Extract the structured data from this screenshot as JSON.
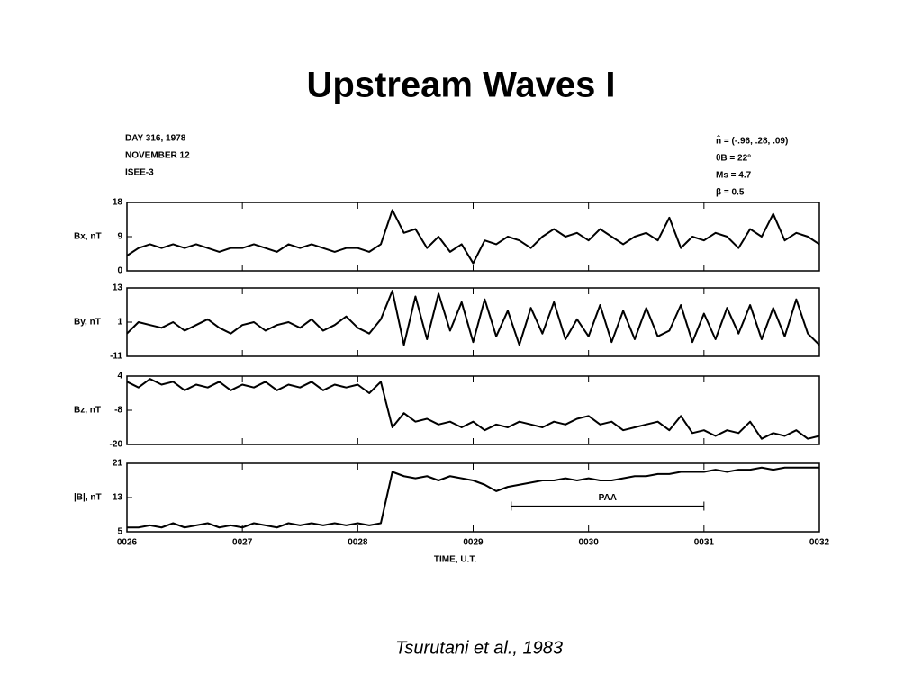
{
  "title": "Upstream Waves I",
  "caption": "Tsurutani et al., 1983",
  "header_left": [
    "DAY 316, 1978",
    "NOVEMBER 12",
    "ISEE-3"
  ],
  "header_right": [
    "n̂ = (-.96, .28, .09)",
    "θB = 22°",
    "Ms = 4.7",
    "β = 0.5"
  ],
  "chart_data": [
    {
      "type": "line",
      "ylabel": "Bx, nT",
      "ylim": [
        0,
        18
      ],
      "yticks": [
        0,
        9,
        18
      ],
      "xlim": [
        26,
        32
      ],
      "color": "#000000",
      "x": [
        26,
        26.1,
        26.2,
        26.3,
        26.4,
        26.5,
        26.6,
        26.7,
        26.8,
        26.9,
        27,
        27.1,
        27.2,
        27.3,
        27.4,
        27.5,
        27.6,
        27.7,
        27.8,
        27.9,
        28,
        28.1,
        28.2,
        28.3,
        28.4,
        28.5,
        28.6,
        28.7,
        28.8,
        28.9,
        29,
        29.1,
        29.2,
        29.3,
        29.4,
        29.5,
        29.6,
        29.7,
        29.8,
        29.9,
        30,
        30.1,
        30.2,
        30.3,
        30.4,
        30.5,
        30.6,
        30.7,
        30.8,
        30.9,
        31,
        31.1,
        31.2,
        31.3,
        31.4,
        31.5,
        31.6,
        31.7,
        31.8,
        31.9,
        32
      ],
      "values": [
        4,
        6,
        7,
        6,
        7,
        6,
        7,
        6,
        5,
        6,
        6,
        7,
        6,
        5,
        7,
        6,
        7,
        6,
        5,
        6,
        6,
        5,
        7,
        16,
        10,
        11,
        6,
        9,
        5,
        7,
        2,
        8,
        7,
        9,
        8,
        6,
        9,
        11,
        9,
        10,
        8,
        11,
        9,
        7,
        9,
        10,
        8,
        14,
        6,
        9,
        8,
        10,
        9,
        6,
        11,
        9,
        15,
        8,
        10,
        9,
        7
      ]
    },
    {
      "type": "line",
      "ylabel": "By, nT",
      "ylim": [
        -11,
        13
      ],
      "yticks": [
        -11,
        1,
        13
      ],
      "xlim": [
        26,
        32
      ],
      "color": "#000000",
      "x": [
        26,
        26.1,
        26.2,
        26.3,
        26.4,
        26.5,
        26.6,
        26.7,
        26.8,
        26.9,
        27,
        27.1,
        27.2,
        27.3,
        27.4,
        27.5,
        27.6,
        27.7,
        27.8,
        27.9,
        28,
        28.1,
        28.2,
        28.3,
        28.4,
        28.5,
        28.6,
        28.7,
        28.8,
        28.9,
        29,
        29.1,
        29.2,
        29.3,
        29.4,
        29.5,
        29.6,
        29.7,
        29.8,
        29.9,
        30,
        30.1,
        30.2,
        30.3,
        30.4,
        30.5,
        30.6,
        30.7,
        30.8,
        30.9,
        31,
        31.1,
        31.2,
        31.3,
        31.4,
        31.5,
        31.6,
        31.7,
        31.8,
        31.9,
        32
      ],
      "values": [
        -3,
        1,
        0,
        -1,
        1,
        -2,
        0,
        2,
        -1,
        -3,
        0,
        1,
        -2,
        0,
        1,
        -1,
        2,
        -2,
        0,
        3,
        -1,
        -3,
        2,
        12,
        -7,
        10,
        -5,
        11,
        -2,
        8,
        -6,
        9,
        -4,
        5,
        -7,
        6,
        -3,
        8,
        -5,
        2,
        -4,
        7,
        -6,
        5,
        -5,
        6,
        -4,
        -2,
        7,
        -6,
        4,
        -5,
        6,
        -3,
        7,
        -5,
        6,
        -4,
        9,
        -3,
        -7
      ]
    },
    {
      "type": "line",
      "ylabel": "Bz, nT",
      "ylim": [
        -20,
        4
      ],
      "yticks": [
        -20,
        -8,
        4
      ],
      "xlim": [
        26,
        32
      ],
      "color": "#000000",
      "x": [
        26,
        26.1,
        26.2,
        26.3,
        26.4,
        26.5,
        26.6,
        26.7,
        26.8,
        26.9,
        27,
        27.1,
        27.2,
        27.3,
        27.4,
        27.5,
        27.6,
        27.7,
        27.8,
        27.9,
        28,
        28.1,
        28.2,
        28.3,
        28.4,
        28.5,
        28.6,
        28.7,
        28.8,
        28.9,
        29,
        29.1,
        29.2,
        29.3,
        29.4,
        29.5,
        29.6,
        29.7,
        29.8,
        29.9,
        30,
        30.1,
        30.2,
        30.3,
        30.4,
        30.5,
        30.6,
        30.7,
        30.8,
        30.9,
        31,
        31.1,
        31.2,
        31.3,
        31.4,
        31.5,
        31.6,
        31.7,
        31.8,
        31.9,
        32
      ],
      "values": [
        2,
        0,
        3,
        1,
        2,
        -1,
        1,
        0,
        2,
        -1,
        1,
        0,
        2,
        -1,
        1,
        0,
        2,
        -1,
        1,
        0,
        1,
        -2,
        2,
        -14,
        -9,
        -12,
        -11,
        -13,
        -12,
        -14,
        -12,
        -15,
        -13,
        -14,
        -12,
        -13,
        -14,
        -12,
        -13,
        -11,
        -10,
        -13,
        -12,
        -15,
        -14,
        -13,
        -12,
        -15,
        -10,
        -16,
        -15,
        -17,
        -15,
        -16,
        -12,
        -18,
        -16,
        -17,
        -15,
        -18,
        -17
      ]
    },
    {
      "type": "line",
      "ylabel": "|B|, nT",
      "ylim": [
        5,
        21
      ],
      "yticks": [
        5,
        13,
        21
      ],
      "xlim": [
        26,
        32
      ],
      "color": "#000000",
      "xlabel": "TIME, U.T.",
      "xticks": [
        {
          "value": 26,
          "label": "0026"
        },
        {
          "value": 27,
          "label": "0027"
        },
        {
          "value": 28,
          "label": "0028"
        },
        {
          "value": 29,
          "label": "0029"
        },
        {
          "value": 30,
          "label": "0030"
        },
        {
          "value": 31,
          "label": "0031"
        },
        {
          "value": 32,
          "label": "0032"
        }
      ],
      "annotation": {
        "text": "PAA",
        "x": [
          29.33,
          31.0
        ],
        "y": 11
      },
      "x": [
        26,
        26.1,
        26.2,
        26.3,
        26.4,
        26.5,
        26.6,
        26.7,
        26.8,
        26.9,
        27,
        27.1,
        27.2,
        27.3,
        27.4,
        27.5,
        27.6,
        27.7,
        27.8,
        27.9,
        28,
        28.1,
        28.2,
        28.3,
        28.4,
        28.5,
        28.6,
        28.7,
        28.8,
        28.9,
        29,
        29.1,
        29.2,
        29.3,
        29.4,
        29.5,
        29.6,
        29.7,
        29.8,
        29.9,
        30,
        30.1,
        30.2,
        30.3,
        30.4,
        30.5,
        30.6,
        30.7,
        30.8,
        30.9,
        31,
        31.1,
        31.2,
        31.3,
        31.4,
        31.5,
        31.6,
        31.7,
        31.8,
        31.9,
        32
      ],
      "values": [
        6,
        6,
        6.5,
        6,
        7,
        6,
        6.5,
        7,
        6,
        6.5,
        6,
        7,
        6.5,
        6,
        7,
        6.5,
        7,
        6.5,
        7,
        6.5,
        7,
        6.5,
        7,
        19,
        18,
        17.5,
        18,
        17,
        18,
        17.5,
        17,
        16,
        14.5,
        15.5,
        16,
        16.5,
        17,
        17,
        17.5,
        17,
        17.5,
        17,
        17,
        17.5,
        18,
        18,
        18.5,
        18.5,
        19,
        19,
        19,
        19.5,
        19,
        19.5,
        19.5,
        20,
        19.5,
        20,
        20,
        20,
        20
      ]
    }
  ]
}
